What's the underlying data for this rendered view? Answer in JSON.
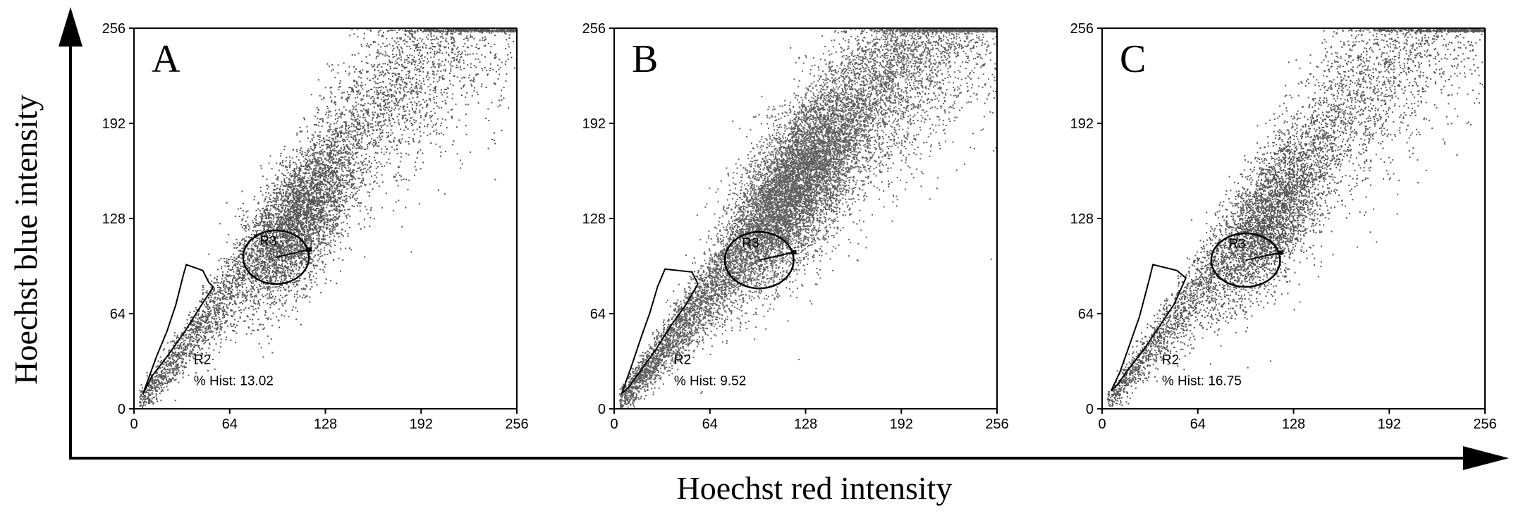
{
  "figure": {
    "xlabel": "Hoechst red intensity",
    "ylabel": "Hoechst blue intensity"
  },
  "chart_data": [
    {
      "type": "scatter",
      "panel_label": "A",
      "xlim": [
        0,
        256
      ],
      "ylim": [
        0,
        256
      ],
      "xticks": [
        "0",
        "64",
        "128",
        "192",
        "256"
      ],
      "yticks": [
        "0",
        "64",
        "128",
        "192",
        "256"
      ],
      "gate_r2": {
        "label": "R2",
        "stat_label": "% Hist: 13.02",
        "polygon": [
          [
            6,
            10
          ],
          [
            15,
            35
          ],
          [
            22,
            52
          ],
          [
            28,
            70
          ],
          [
            33,
            90
          ],
          [
            35,
            97
          ],
          [
            46,
            93
          ],
          [
            50,
            85
          ],
          [
            53,
            82
          ],
          [
            44,
            68
          ],
          [
            34,
            52
          ],
          [
            22,
            35
          ],
          [
            12,
            22
          ],
          [
            8,
            14
          ]
        ]
      },
      "gate_r3": {
        "label": "R3",
        "center": [
          95,
          102
        ],
        "radius_x": 22,
        "radius_y": 18
      },
      "density": {
        "points": 9000,
        "color": "#555555",
        "core": {
          "center": [
            110,
            125
          ],
          "spread": 18
        }
      }
    },
    {
      "type": "scatter",
      "panel_label": "B",
      "xlim": [
        0,
        256
      ],
      "ylim": [
        0,
        256
      ],
      "xticks": [
        "0",
        "64",
        "128",
        "192",
        "256"
      ],
      "yticks": [
        "0",
        "64",
        "128",
        "192",
        "256"
      ],
      "gate_r2": {
        "label": "R2",
        "stat_label": "% Hist: 9.52",
        "polygon": [
          [
            5,
            10
          ],
          [
            12,
            30
          ],
          [
            18,
            48
          ],
          [
            24,
            65
          ],
          [
            29,
            82
          ],
          [
            34,
            94
          ],
          [
            52,
            92
          ],
          [
            56,
            84
          ],
          [
            48,
            70
          ],
          [
            38,
            56
          ],
          [
            28,
            40
          ],
          [
            18,
            26
          ],
          [
            10,
            15
          ]
        ]
      },
      "gate_r3": {
        "label": "R3",
        "center": [
          97,
          100
        ],
        "radius_x": 23,
        "radius_y": 19
      },
      "density": {
        "points": 16000,
        "color": "#606060",
        "core": {
          "center": [
            120,
            150
          ],
          "spread": 22
        }
      }
    },
    {
      "type": "scatter",
      "panel_label": "C",
      "xlim": [
        0,
        256
      ],
      "ylim": [
        0,
        256
      ],
      "xticks": [
        "0",
        "64",
        "128",
        "192",
        "256"
      ],
      "yticks": [
        "0",
        "64",
        "128",
        "192",
        "256"
      ],
      "gate_r2": {
        "label": "R2",
        "stat_label": "% Hist: 16.75",
        "polygon": [
          [
            6,
            12
          ],
          [
            12,
            25
          ],
          [
            18,
            42
          ],
          [
            25,
            62
          ],
          [
            31,
            85
          ],
          [
            34,
            97
          ],
          [
            50,
            93
          ],
          [
            56,
            88
          ],
          [
            48,
            70
          ],
          [
            38,
            55
          ],
          [
            28,
            40
          ],
          [
            18,
            27
          ],
          [
            10,
            16
          ]
        ]
      },
      "gate_r3": {
        "label": "R3",
        "center": [
          96,
          100
        ],
        "radius_x": 23,
        "radius_y": 18
      },
      "density": {
        "points": 8000,
        "color": "#555555",
        "core": {
          "center": [
            112,
            125
          ],
          "spread": 18
        }
      }
    }
  ]
}
